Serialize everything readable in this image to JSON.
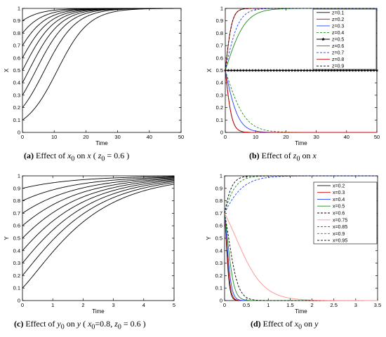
{
  "chart_data": [
    {
      "id": "a",
      "type": "line",
      "xlabel": "Time",
      "ylabel": "X",
      "xlim": [
        0,
        50
      ],
      "ylim": [
        0,
        1
      ],
      "xticks": [
        0,
        10,
        20,
        30,
        40,
        50
      ],
      "yticks": [
        0,
        0.1,
        0.2,
        0.3,
        0.4,
        0.5,
        0.6,
        0.7,
        0.8,
        0.9,
        1
      ],
      "curve_model": "logistic",
      "rate": 0.2,
      "initial_values": [
        0.1,
        0.2,
        0.3,
        0.4,
        0.5,
        0.6,
        0.7,
        0.8,
        0.9
      ],
      "target": 1
    },
    {
      "id": "b",
      "type": "line",
      "xlabel": "Time",
      "ylabel": "X",
      "xlim": [
        0,
        50
      ],
      "ylim": [
        0,
        1
      ],
      "xticks": [
        0,
        10,
        20,
        30,
        40,
        50
      ],
      "yticks": [
        0,
        0.1,
        0.2,
        0.3,
        0.4,
        0.5,
        0.6,
        0.7,
        0.8,
        0.9,
        1
      ],
      "curve_model": "logistic",
      "initial_value": 0.5,
      "legend_position": "top-right",
      "series": [
        {
          "name": "z=0.1",
          "direction": "down",
          "rate": 0.9,
          "color": "#000000",
          "dash": "solid"
        },
        {
          "name": "z=0.2",
          "direction": "up",
          "rate": 0.9,
          "color": "#cc0000",
          "dash": "solid"
        },
        {
          "name": "z=0.3",
          "direction": "down",
          "rate": 0.45,
          "color": "#1f3fff",
          "dash": "solid"
        },
        {
          "name": "z=0.4",
          "direction": "down",
          "rate": 0.3,
          "color": "#1e8c1e",
          "dash": "dashed"
        },
        {
          "name": "z=0.5",
          "direction": "flat",
          "rate": 0,
          "color": "#000000",
          "dash": "solid",
          "marker": "star"
        },
        {
          "name": "z=0.6",
          "direction": "up",
          "rate": 0.3,
          "color": "#1e8c1e",
          "dash": "solid"
        },
        {
          "name": "z=0.7",
          "direction": "up",
          "rate": 0.45,
          "color": "#1f3fff",
          "dash": "dashed"
        },
        {
          "name": "z=0.8",
          "direction": "down",
          "rate": 0.9,
          "color": "#cc0000",
          "dash": "solid"
        },
        {
          "name": "z=0.9",
          "direction": "up",
          "rate": 0.9,
          "color": "#000000",
          "dash": "dashed"
        }
      ]
    },
    {
      "id": "c",
      "type": "line",
      "xlabel": "Time",
      "ylabel": "Y",
      "xlim": [
        0,
        5
      ],
      "ylim": [
        0,
        1
      ],
      "xticks": [
        0,
        1,
        2,
        3,
        4,
        5
      ],
      "yticks": [
        0,
        0.1,
        0.2,
        0.3,
        0.4,
        0.5,
        0.6,
        0.7,
        0.8,
        0.9,
        1
      ],
      "curve_model": "logistic-squared-decay",
      "rate": 0.6,
      "initial_values": [
        0.1,
        0.2,
        0.3,
        0.4,
        0.5,
        0.6,
        0.7,
        0.8,
        0.9
      ]
    },
    {
      "id": "d",
      "type": "line",
      "xlabel": "Time",
      "ylabel": "Y",
      "xlim": [
        0,
        3.5
      ],
      "ylim": [
        0,
        1
      ],
      "xticks": [
        0,
        0.5,
        1,
        1.5,
        2,
        2.5,
        3,
        3.5
      ],
      "yticks": [
        0,
        0.1,
        0.2,
        0.3,
        0.4,
        0.5,
        0.6,
        0.7,
        0.8,
        0.9,
        1
      ],
      "curve_model": "logistic",
      "initial_value": 0.7,
      "legend_position": "top-right",
      "series": [
        {
          "name": "x=0.2",
          "direction": "down",
          "rate": 25,
          "color": "#000000",
          "dash": "solid"
        },
        {
          "name": "x=0.3",
          "direction": "down",
          "rate": 22,
          "color": "#cc0000",
          "dash": "solid"
        },
        {
          "name": "x=0.4",
          "direction": "down",
          "rate": 18,
          "color": "#1f3fff",
          "dash": "solid"
        },
        {
          "name": "x=0.5",
          "direction": "down",
          "rate": 13,
          "color": "#1e8c1e",
          "dash": "solid"
        },
        {
          "name": "x=0.6",
          "direction": "down",
          "rate": 9,
          "color": "#000000",
          "dash": "dashed"
        },
        {
          "name": "x=0.75",
          "direction": "down",
          "rate": 3.2,
          "color": "#ff9090",
          "dash": "solid"
        },
        {
          "name": "x=0.85",
          "direction": "up",
          "rate": 3.5,
          "color": "#1f3fff",
          "dash": "dashed"
        },
        {
          "name": "x=0.9",
          "direction": "up",
          "rate": 6,
          "color": "#1e8c1e",
          "dash": "dashed"
        },
        {
          "name": "x=0.95",
          "direction": "up",
          "rate": 9,
          "color": "#000000",
          "dash": "dashed"
        }
      ]
    }
  ],
  "captions": {
    "a": {
      "label": "(a)",
      "before_var": "Effect of ",
      "var": "x",
      "var_sub": "0",
      "mid": " on ",
      "target": "x",
      "cond_open": " ( ",
      "cond_var": "z",
      "cond_sub": "0",
      "cond_val": " = 0.6",
      "cond_close": " )"
    },
    "b": {
      "label": "(b)",
      "before_var": "Effect of ",
      "var": "z",
      "var_sub": "0",
      "mid": " on ",
      "target": "x"
    },
    "c": {
      "label": "(c)",
      "before_var": "Effect of ",
      "var": "y",
      "var_sub": "0",
      "mid": " on ",
      "target": "y",
      "cond_open": " ( ",
      "cond_var": "x",
      "cond_sub": "0",
      "cond_val": "=0.8",
      "sep": ", ",
      "cond_var2": "z",
      "cond_sub2": "0",
      "cond_val2": " = 0.6",
      "cond_close": " )"
    },
    "d": {
      "label": "(d)",
      "before_var": "Effect of ",
      "var": "x",
      "var_sub": "0",
      "mid": " on ",
      "target": "y"
    }
  }
}
